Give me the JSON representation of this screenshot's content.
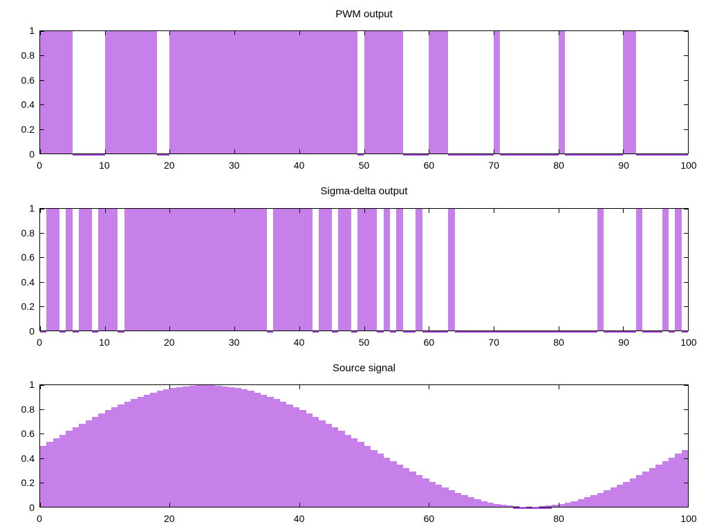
{
  "figure": {
    "background": "#ffffff",
    "fill_color": "#c77fe9",
    "zero_line_color": "#9e3fd4",
    "axis_color": "#000000",
    "text_color": "#000000"
  },
  "chart_data": [
    {
      "type": "bar",
      "subtype": "binary-pulse-train",
      "title": "PWM output",
      "xlabel": "",
      "ylabel": "",
      "xlim": [
        0,
        100
      ],
      "ylim": [
        0,
        1
      ],
      "x_ticks": [
        0,
        10,
        20,
        30,
        40,
        50,
        60,
        70,
        80,
        90,
        100
      ],
      "y_ticks": [
        "0",
        "0.2",
        "0.4",
        "0.6",
        "0.8",
        "1"
      ],
      "grid": false,
      "legend": false,
      "on_intervals": [
        [
          0,
          5
        ],
        [
          10,
          18
        ],
        [
          20,
          49
        ],
        [
          50,
          56
        ],
        [
          60,
          63
        ],
        [
          70,
          71
        ],
        [
          80,
          81
        ],
        [
          90,
          92
        ]
      ],
      "zero_intervals": [
        [
          5,
          10
        ],
        [
          18,
          20
        ],
        [
          49,
          50
        ],
        [
          56,
          60
        ],
        [
          63,
          70
        ],
        [
          71,
          80
        ],
        [
          81,
          90
        ],
        [
          92,
          100
        ]
      ]
    },
    {
      "type": "bar",
      "subtype": "binary-pulse-train",
      "title": "Sigma-delta output",
      "xlabel": "",
      "ylabel": "",
      "xlim": [
        0,
        100
      ],
      "ylim": [
        0,
        1
      ],
      "x_ticks": [
        0,
        10,
        20,
        30,
        40,
        50,
        60,
        70,
        80,
        90,
        100
      ],
      "y_ticks": [
        "0",
        "0.2",
        "0.4",
        "0.6",
        "0.8",
        "1"
      ],
      "grid": false,
      "legend": false,
      "on_intervals": [
        [
          1,
          3
        ],
        [
          4,
          5
        ],
        [
          6,
          8
        ],
        [
          9,
          12
        ],
        [
          13,
          35
        ],
        [
          36,
          42
        ],
        [
          43,
          45
        ],
        [
          46,
          48
        ],
        [
          49,
          52
        ],
        [
          53,
          54
        ],
        [
          55,
          56
        ],
        [
          58,
          59
        ],
        [
          63,
          64
        ],
        [
          86,
          87
        ],
        [
          92,
          93
        ],
        [
          96,
          97
        ],
        [
          98,
          99
        ]
      ],
      "zero_intervals": [
        [
          0,
          1
        ],
        [
          3,
          4
        ],
        [
          5,
          6
        ],
        [
          8,
          9
        ],
        [
          12,
          13
        ],
        [
          35,
          36
        ],
        [
          42,
          43
        ],
        [
          45,
          46
        ],
        [
          48,
          49
        ],
        [
          52,
          53
        ],
        [
          54,
          55
        ],
        [
          56,
          58
        ],
        [
          59,
          63
        ],
        [
          64,
          86
        ],
        [
          87,
          92
        ],
        [
          93,
          96
        ],
        [
          97,
          98
        ],
        [
          99,
          100
        ]
      ]
    },
    {
      "type": "bar",
      "subtype": "histogram-staircase",
      "title": "Source signal",
      "xlabel": "",
      "ylabel": "",
      "xlim": [
        0,
        100
      ],
      "ylim": [
        0,
        1
      ],
      "x_ticks": [
        0,
        20,
        40,
        60,
        80,
        100
      ],
      "y_ticks": [
        "0",
        "0.2",
        "0.4",
        "0.6",
        "0.8",
        "1"
      ],
      "grid": false,
      "legend": false,
      "x_start": 0,
      "x_step": 1,
      "formula": "0.5 + 0.5*sin(2*pi*x/100)",
      "zero_intervals": [
        [
          73,
          79
        ]
      ],
      "values": [
        0.5,
        0.5314,
        0.5627,
        0.5937,
        0.6243,
        0.6545,
        0.6841,
        0.7129,
        0.7409,
        0.7679,
        0.7939,
        0.8187,
        0.8423,
        0.8645,
        0.8853,
        0.9045,
        0.9222,
        0.9382,
        0.9524,
        0.9649,
        0.9755,
        0.9843,
        0.9911,
        0.9961,
        0.999,
        1.0,
        0.999,
        0.9961,
        0.9911,
        0.9843,
        0.9755,
        0.9649,
        0.9524,
        0.9382,
        0.9222,
        0.9045,
        0.8853,
        0.8645,
        0.8423,
        0.8187,
        0.7939,
        0.7679,
        0.7409,
        0.7129,
        0.6841,
        0.6545,
        0.6243,
        0.5937,
        0.5627,
        0.5314,
        0.5,
        0.4686,
        0.4373,
        0.4063,
        0.3757,
        0.3455,
        0.3159,
        0.2871,
        0.2591,
        0.2321,
        0.2061,
        0.1813,
        0.1577,
        0.1355,
        0.1147,
        0.0955,
        0.0778,
        0.0618,
        0.0476,
        0.0351,
        0.0245,
        0.0157,
        0.0089,
        0.0039,
        0.001,
        0.0,
        0.001,
        0.0039,
        0.0089,
        0.0157,
        0.0245,
        0.0351,
        0.0476,
        0.0618,
        0.0778,
        0.0955,
        0.1147,
        0.1355,
        0.1577,
        0.1813,
        0.2061,
        0.2321,
        0.2591,
        0.2871,
        0.3159,
        0.3455,
        0.3757,
        0.4063,
        0.4373,
        0.4686
      ]
    }
  ]
}
